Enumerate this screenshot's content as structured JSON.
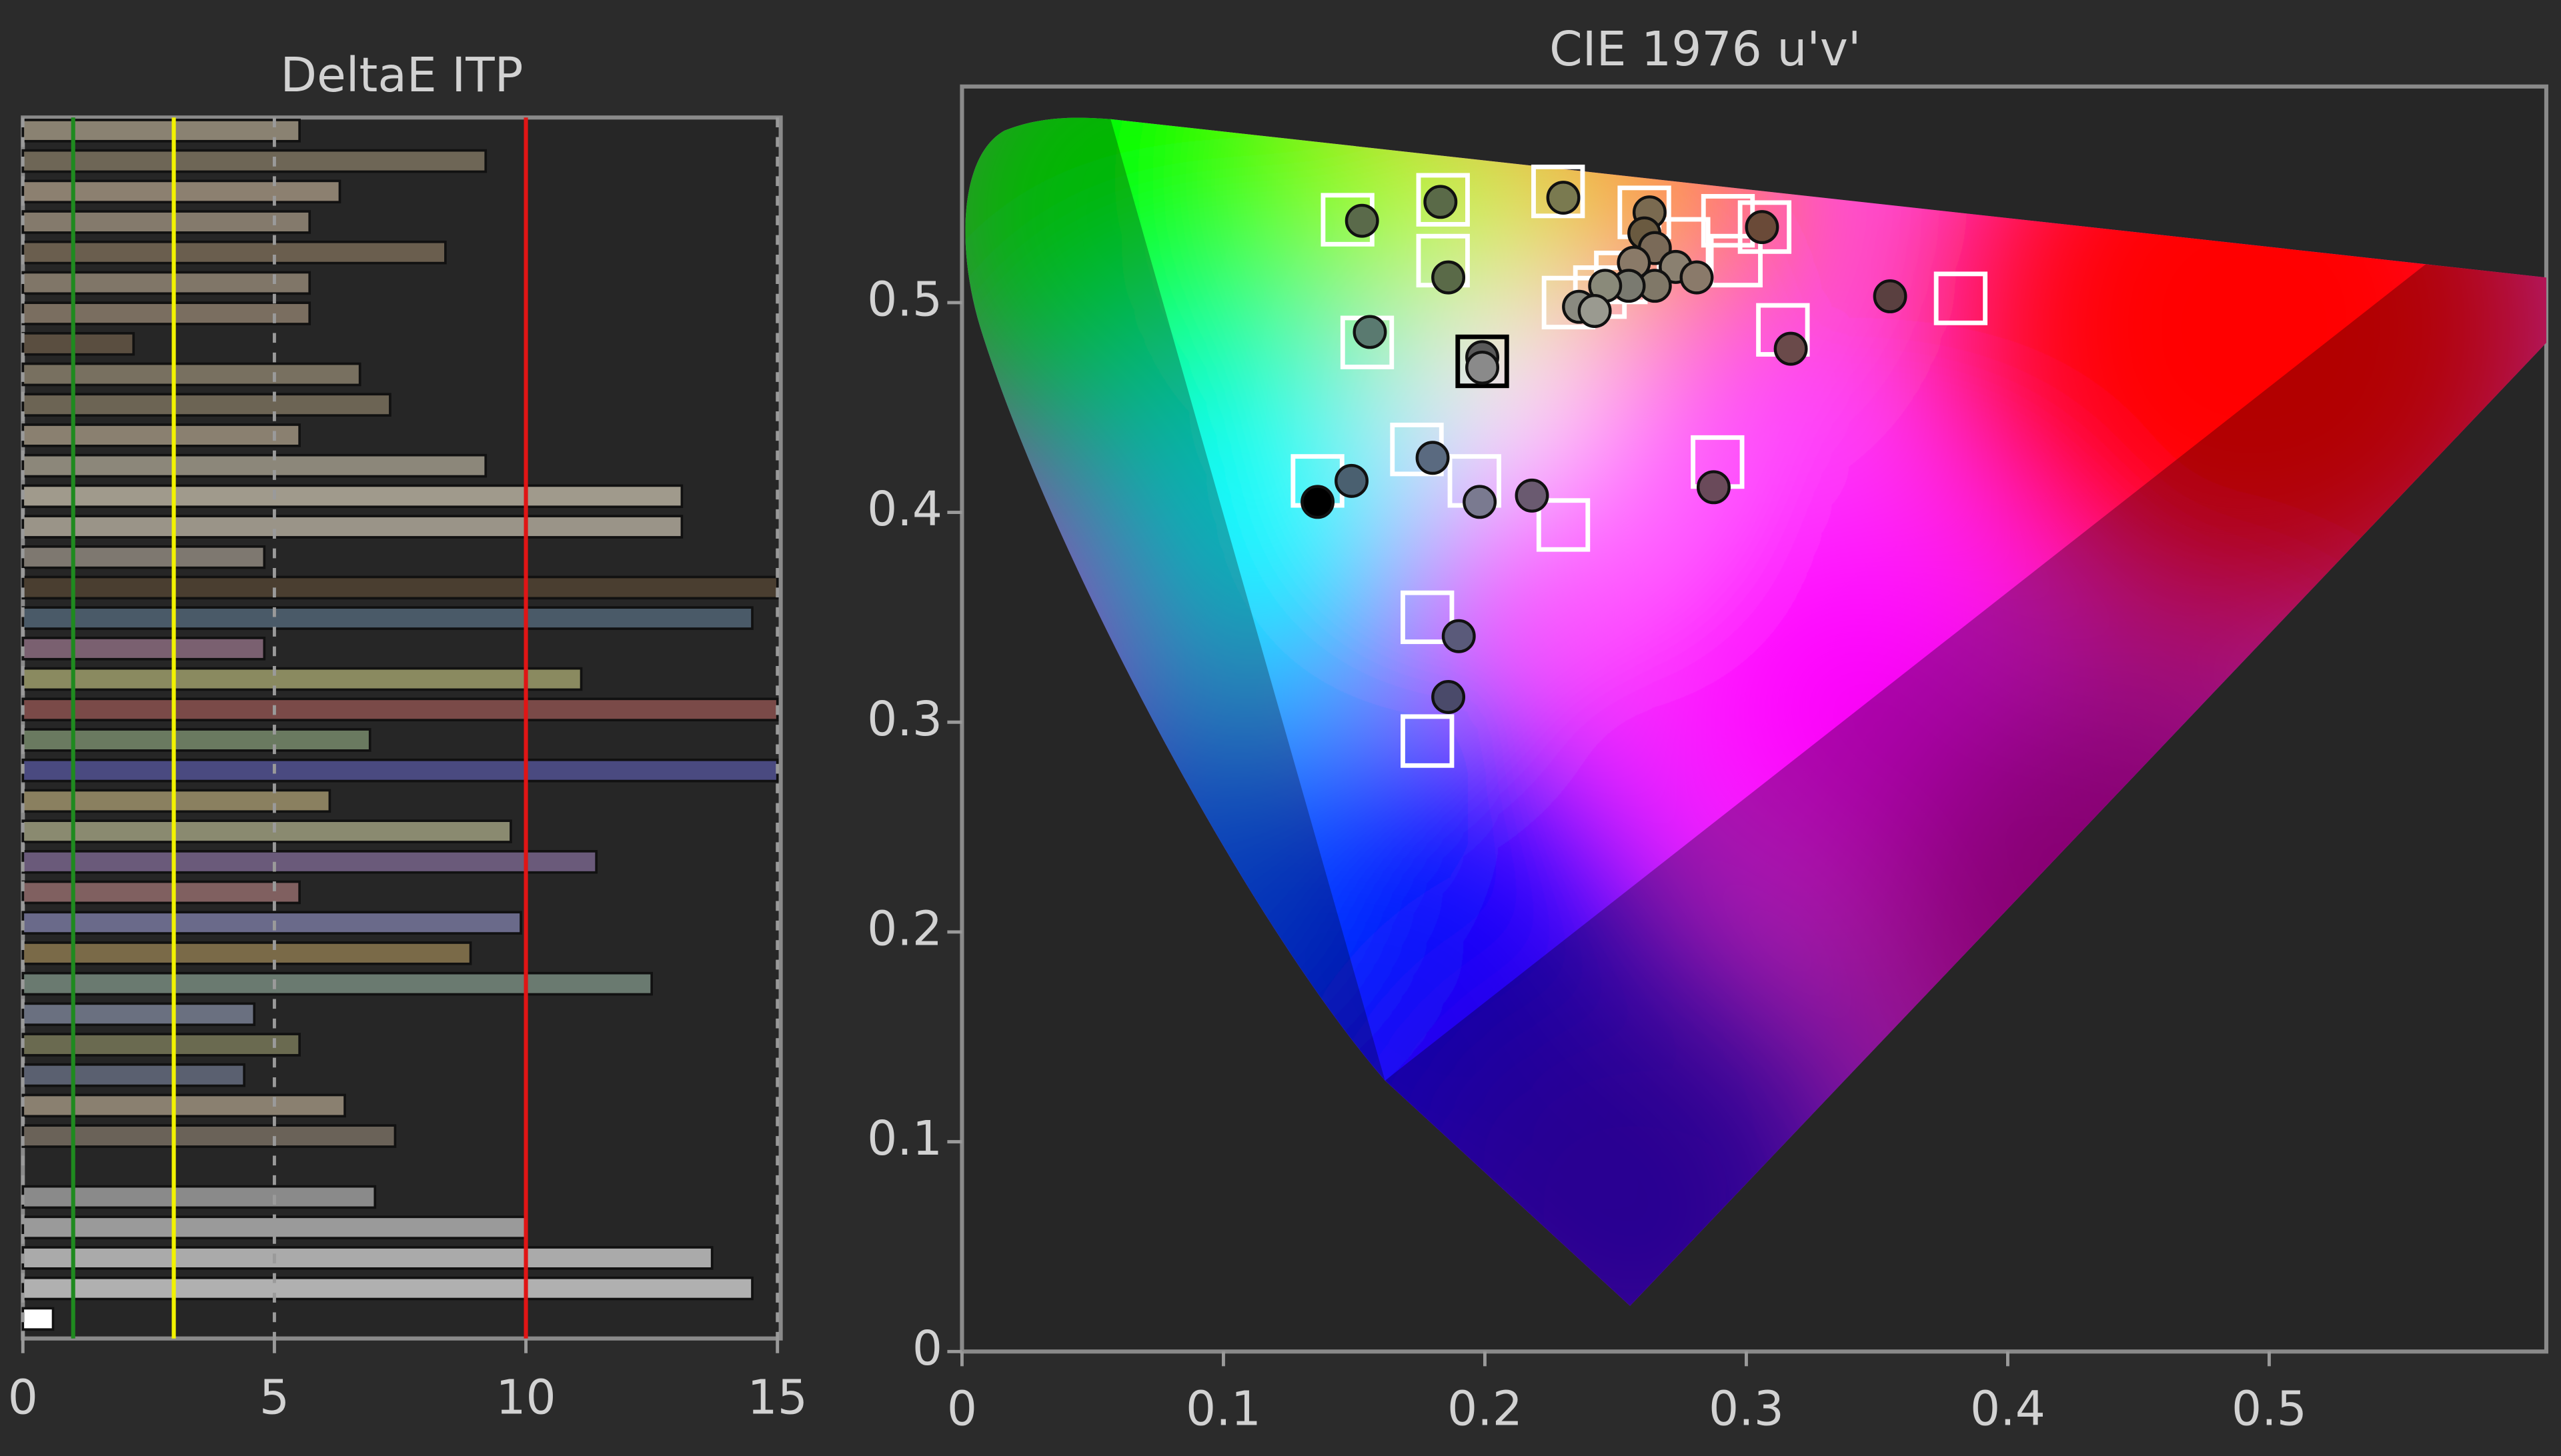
{
  "chart_data": [
    {
      "type": "bar",
      "orientation": "horizontal",
      "title": "DeltaE ITP",
      "categories": [
        null,
        null,
        null,
        null,
        null,
        null,
        null,
        null,
        null,
        null,
        null,
        null,
        null,
        null,
        null,
        null,
        null,
        null,
        null,
        null,
        null,
        null,
        null,
        null,
        null,
        null,
        null,
        null,
        null,
        null,
        null,
        null,
        null,
        null,
        null,
        null,
        null,
        null,
        null,
        null
      ],
      "values": [
        5.5,
        9.2,
        6.3,
        5.7,
        8.4,
        5.7,
        5.7,
        2.2,
        6.7,
        7.3,
        5.5,
        9.2,
        13.1,
        13.1,
        4.8,
        15,
        14.5,
        4.8,
        11.1,
        15,
        6.9,
        15,
        6.1,
        9.7,
        11.4,
        5.5,
        9.9,
        8.9,
        12.5,
        4.6,
        5.5,
        4.4,
        6.4,
        7.4,
        null,
        7.0,
        10.0,
        13.7,
        14.5,
        0.6
      ],
      "colors": [
        "#8a8272",
        "#6e6656",
        "#8c8070",
        "#847a6c",
        "#6a5e4e",
        "#807668",
        "#7a6e60",
        "#5a4e40",
        "#787060",
        "#6c6454",
        "#8a8070",
        "#8c877a",
        "#a09a8c",
        "#9a9488",
        "#7e7870",
        "#4a3e30",
        "#4a5a68",
        "#7a6070",
        "#8a8a60",
        "#7a4a48",
        "#6a7a60",
        "#4a4a80",
        "#8a8060",
        "#8a8a70",
        "#6a5a7a",
        "#806060",
        "#6a6a8a",
        "#7a6a48",
        "#6a7a70",
        "#6a7080",
        "#6a6a50",
        "#5a6070",
        "#8a8070",
        "#6a6258",
        "#555555",
        "#8a8a8a",
        "#9a9a9a",
        "#aaaaaa",
        "#b0b0b0",
        "#ffffff"
      ],
      "xlim": [
        0,
        15
      ],
      "xticks": [
        0,
        5,
        10,
        15
      ],
      "grid": true,
      "reference_lines": [
        {
          "value": 1,
          "color": "#1f8a1f"
        },
        {
          "value": 3,
          "color": "#f2f200"
        },
        {
          "value": 10,
          "color": "#e01515"
        }
      ]
    },
    {
      "type": "scatter",
      "title": "CIE 1976 u'v'",
      "xlim": [
        0,
        0.606
      ],
      "ylim": [
        0,
        0.603
      ],
      "xticks": [
        0,
        0.1,
        0.2,
        0.3,
        0.4,
        0.5
      ],
      "yticks": [
        0,
        0.1,
        0.2,
        0.3,
        0.4,
        0.5
      ],
      "series": [
        {
          "marker": "square",
          "color": "#ffffff",
          "x": [
            0.1475,
            0.184,
            0.228,
            0.261,
            0.293,
            0.307,
            0.184,
            0.276,
            0.296,
            0.232,
            0.244,
            0.252,
            0.314,
            0.382,
            0.155,
            0.199,
            0.174,
            0.136,
            0.196,
            0.289,
            0.23,
            0.178,
            0.178
          ],
          "values": [
            0.5395,
            0.549,
            0.553,
            0.543,
            0.539,
            0.536,
            0.52,
            0.528,
            0.52,
            0.5,
            0.505,
            0.512,
            0.487,
            0.502,
            0.481,
            0.472,
            0.43,
            0.415,
            0.415,
            0.424,
            0.394,
            0.35,
            0.291
          ],
          "colors": [
            "#ffffff",
            "#ffffff",
            "#ffffff",
            "#ffffff",
            "#ffffff",
            "#ffffff",
            "#ffffff",
            "#ffffff",
            "#ffffff",
            "#ffffff",
            "#ffffff",
            "#ffffff",
            "#ffffff",
            "#ffffff",
            "#ffffff",
            "#000000",
            "#ffffff",
            "#ffffff",
            "#ffffff",
            "#ffffff",
            "#ffffff",
            "#ffffff",
            "#ffffff"
          ]
        },
        {
          "marker": "circle",
          "color": "#777777",
          "x": [
            0.153,
            0.183,
            0.23,
            0.263,
            0.261,
            0.306,
            0.186,
            0.265,
            0.257,
            0.273,
            0.281,
            0.265,
            0.255,
            0.246,
            0.236,
            0.242,
            0.355,
            0.317,
            0.156,
            0.199,
            0.199,
            0.18,
            0.149,
            0.136,
            0.198,
            0.218,
            0.2875,
            0.19,
            0.186
          ],
          "values": [
            0.539,
            0.548,
            0.55,
            0.543,
            0.533,
            0.536,
            0.512,
            0.526,
            0.519,
            0.517,
            0.512,
            0.508,
            0.508,
            0.508,
            0.498,
            0.496,
            0.503,
            0.478,
            0.486,
            0.474,
            0.469,
            0.426,
            0.415,
            0.405,
            0.405,
            0.408,
            0.412,
            0.341,
            0.312
          ],
          "colors": [
            "#5a6a4a",
            "#5a6a48",
            "#7a7a50",
            "#7a6a50",
            "#6a5a40",
            "#6a4a38",
            "#5a6a48",
            "#7a6a58",
            "#8a7a68",
            "#8a8070",
            "#8a7a6a",
            "#807868",
            "#7a7a70",
            "#8a8a7a",
            "#8a8a80",
            "#9a9a90",
            "#5a4040",
            "#6a4a4a",
            "#5a7a70",
            "#5a5a5a",
            "#8a8a8a",
            "#5a6a80",
            "#4a6070",
            "#000000",
            "#7a7a90",
            "#6a5a70",
            "#6a4a5a",
            "#5a5a7a",
            "#4a4a6a"
          ]
        }
      ]
    }
  ]
}
